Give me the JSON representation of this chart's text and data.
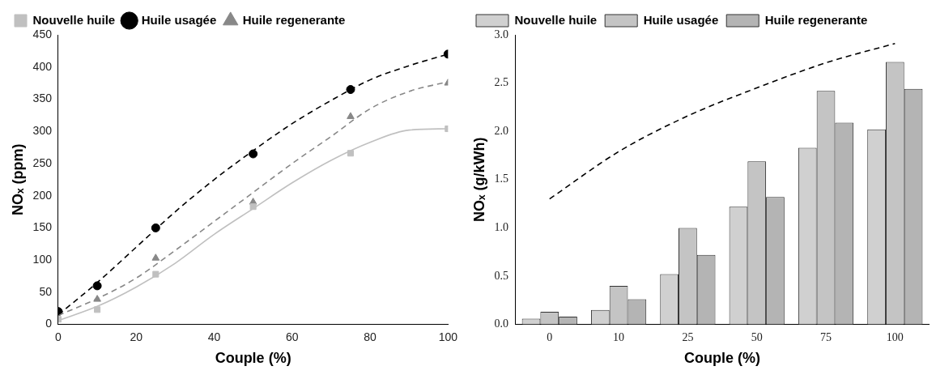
{
  "chart_data": [
    {
      "type": "scatter",
      "xlabel": "Couple (%)",
      "ylabel": "NOₓ (ppm)",
      "xlim": [
        0,
        100
      ],
      "xticks": [
        0,
        20,
        40,
        60,
        80,
        100
      ],
      "ylim": [
        0,
        450
      ],
      "yticks": [
        0,
        50,
        100,
        150,
        200,
        250,
        300,
        350,
        400,
        450
      ],
      "legend": "top left",
      "x": [
        0,
        10,
        25,
        50,
        75,
        100
      ],
      "series": [
        {
          "name": "Nouvelle huile",
          "color": "#c0c0c0",
          "marker": "square",
          "values": [
            8,
            23,
            78,
            183,
            266,
            304
          ]
        },
        {
          "name": "Huile usagée",
          "color": "#000000",
          "marker": "circle",
          "values": [
            20,
            60,
            150,
            265,
            365,
            420
          ]
        },
        {
          "name": "Huile regenerante",
          "color": "#888888",
          "marker": "triangle",
          "values": [
            null,
            39,
            103,
            190,
            323,
            375
          ]
        },
        {
          "type": "line",
          "color": "#c0c0c0",
          "line_style": "solid",
          "marker": "none",
          "x": [
            0,
            10,
            20,
            30,
            40,
            50,
            60,
            70,
            80,
            90,
            100
          ],
          "values": [
            6,
            28,
            58,
            95,
            140,
            180,
            220,
            255,
            283,
            302,
            304
          ]
        },
        {
          "type": "line",
          "color": "#000000",
          "line_style": "dashed",
          "marker": "none",
          "x": [
            0,
            10,
            20,
            30,
            40,
            50,
            60,
            70,
            80,
            90,
            100
          ],
          "values": [
            15,
            65,
            120,
            175,
            225,
            270,
            312,
            348,
            380,
            402,
            420
          ]
        },
        {
          "type": "line",
          "color": "#888888",
          "line_style": "dashed",
          "marker": "none",
          "x": [
            0,
            10,
            20,
            30,
            40,
            50,
            60,
            70,
            80,
            90,
            100
          ],
          "values": [
            14,
            40,
            72,
            115,
            160,
            205,
            250,
            292,
            335,
            362,
            377
          ]
        }
      ]
    },
    {
      "type": "bar",
      "xlabel": "Couple (%)",
      "ylabel": "NOₓ (g/kWh)",
      "categories": [
        "0",
        "10",
        "25",
        "50",
        "75",
        "100"
      ],
      "ylim": [
        0,
        3
      ],
      "yticks": [
        {
          "value": 0,
          "label": "0.0"
        },
        {
          "value": 0.5,
          "label": "0.5"
        },
        {
          "value": 1,
          "label": "1.0"
        },
        {
          "value": 1.5,
          "label": "1.5"
        },
        {
          "value": 2,
          "label": "2.0"
        },
        {
          "value": 2.5,
          "label": "2.5"
        },
        {
          "value": 3,
          "label": "3.0"
        }
      ],
      "legend": "top left",
      "series": [
        {
          "name": "Nouvelle huile",
          "color": "#d0d0d0",
          "values": [
            0.06,
            0.15,
            0.52,
            1.22,
            1.83,
            2.02
          ]
        },
        {
          "name": "Huile usagée",
          "color": "#c4c4c4",
          "values": [
            0.13,
            0.4,
            1.0,
            1.69,
            2.42,
            2.72
          ]
        },
        {
          "name": "Huile regenerante",
          "color": "#b4b4b4",
          "values": [
            0.08,
            0.26,
            0.72,
            1.32,
            2.09,
            2.44
          ]
        },
        {
          "type": "line",
          "color": "#000000",
          "line_style": "dashed",
          "values": [
            1.3,
            1.79,
            2.16,
            2.45,
            2.71,
            2.91
          ]
        }
      ]
    }
  ]
}
